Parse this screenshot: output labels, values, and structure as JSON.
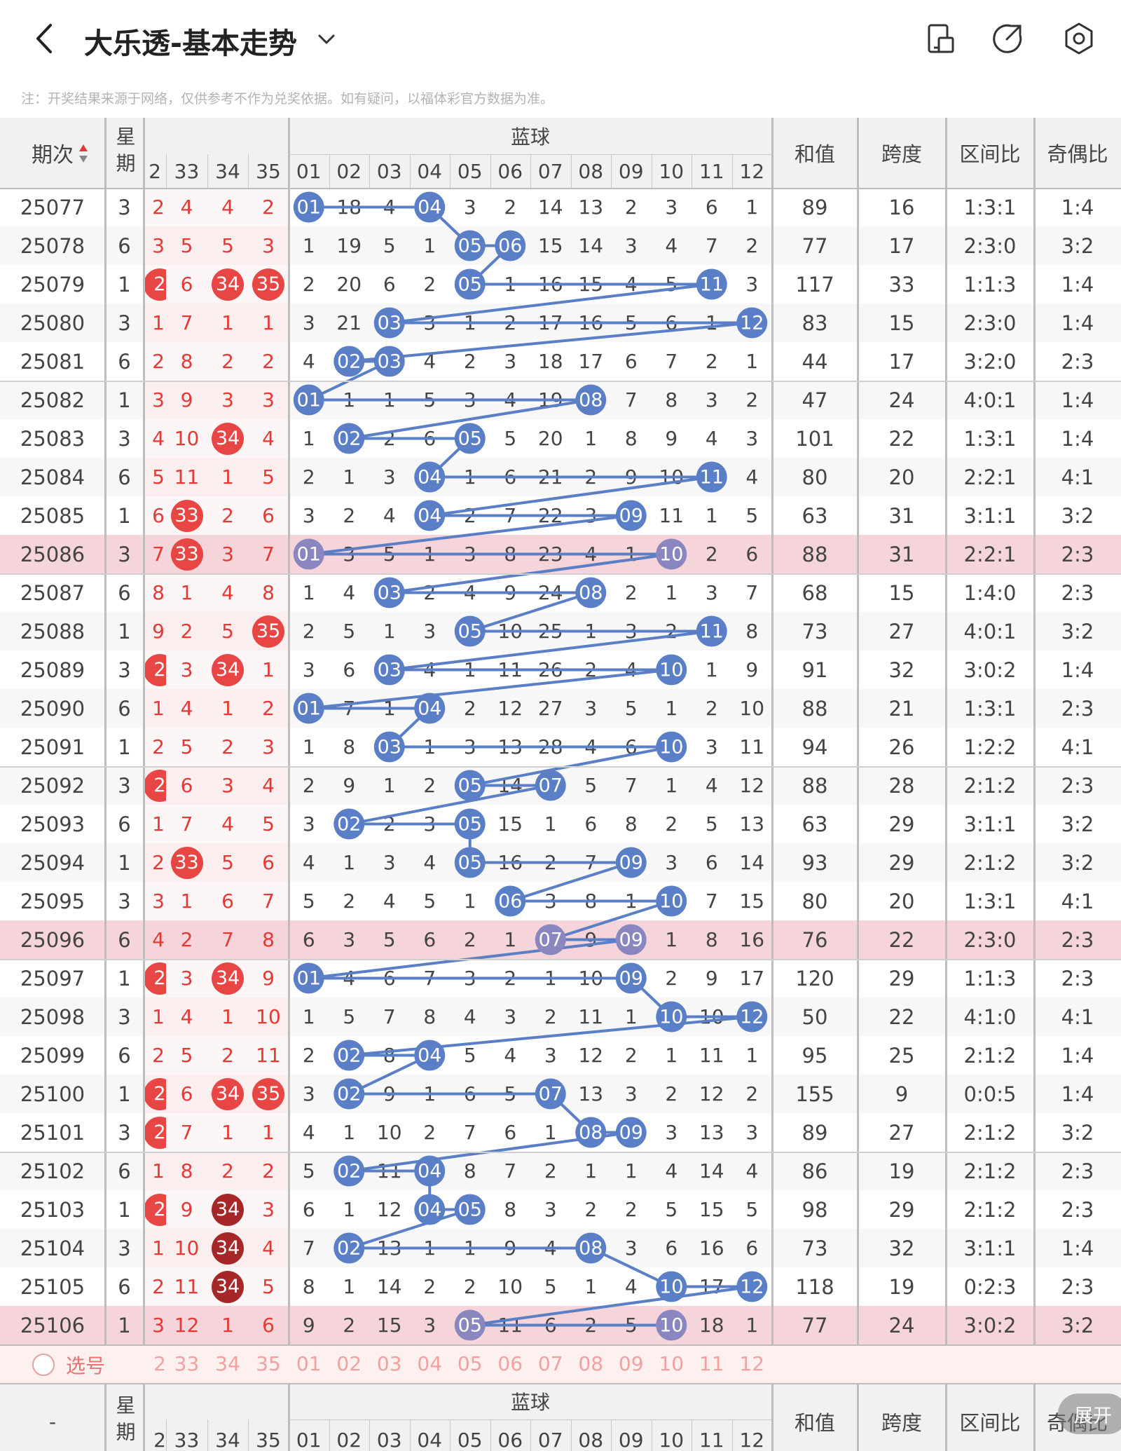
{
  "header": {
    "title": "大乐透-基本走势",
    "icons": [
      "back-arrow-icon",
      "chevron-down-icon",
      "phone-layout-icon",
      "share-icon",
      "settings-icon"
    ]
  },
  "note": "注：开奖结果来源于网络，仅供参考不作为兑奖依据。如有疑问，以福体彩官方数据为准。",
  "table": {
    "col_labels": {
      "period": "期次",
      "week": "星期",
      "blue": "蓝球",
      "sum": "和值",
      "span": "跨度",
      "zone": "区间比",
      "oddeven": "奇偶比"
    },
    "red_headers": [
      "2",
      "33",
      "34",
      "35"
    ],
    "blue_headers": [
      "01",
      "02",
      "03",
      "04",
      "05",
      "06",
      "07",
      "08",
      "09",
      "10",
      "11",
      "12"
    ],
    "rows": [
      {
        "p": "25077",
        "w": "3",
        "red": [
          "2",
          "4",
          "4",
          "2"
        ],
        "blue": [
          "01",
          "18",
          "4",
          "04",
          "3",
          "2",
          "14",
          "13",
          "2",
          "3",
          "6",
          "1"
        ],
        "sum": "89",
        "span": "16",
        "zone": "1:3:1",
        "oe": "1:4"
      },
      {
        "p": "25078",
        "w": "6",
        "red": [
          "3",
          "5",
          "5",
          "3"
        ],
        "blue": [
          "1",
          "19",
          "5",
          "1",
          "05",
          "06",
          "15",
          "14",
          "3",
          "4",
          "7",
          "2"
        ],
        "sum": "77",
        "span": "17",
        "zone": "2:3:0",
        "oe": "3:2"
      },
      {
        "p": "25079",
        "w": "1",
        "red": [
          "2",
          "6",
          "34",
          "35"
        ],
        "blue": [
          "2",
          "20",
          "6",
          "2",
          "05",
          "1",
          "16",
          "15",
          "4",
          "5",
          "11",
          "3"
        ],
        "sum": "117",
        "span": "33",
        "zone": "1:1:3",
        "oe": "1:4"
      },
      {
        "p": "25080",
        "w": "3",
        "red": [
          "1",
          "7",
          "1",
          "1"
        ],
        "blue": [
          "3",
          "21",
          "03",
          "3",
          "1",
          "2",
          "17",
          "16",
          "5",
          "6",
          "1",
          "12"
        ],
        "sum": "83",
        "span": "15",
        "zone": "2:3:0",
        "oe": "1:4"
      },
      {
        "p": "25081",
        "w": "6",
        "red": [
          "2",
          "8",
          "2",
          "2"
        ],
        "blue": [
          "4",
          "02",
          "03",
          "4",
          "2",
          "3",
          "18",
          "17",
          "6",
          "7",
          "2",
          "1"
        ],
        "sum": "44",
        "span": "17",
        "zone": "3:2:0",
        "oe": "2:3"
      },
      {
        "p": "25082",
        "w": "1",
        "red": [
          "3",
          "9",
          "3",
          "3"
        ],
        "blue": [
          "01",
          "1",
          "1",
          "5",
          "3",
          "4",
          "19",
          "08",
          "7",
          "8",
          "3",
          "2"
        ],
        "sum": "47",
        "span": "24",
        "zone": "4:0:1",
        "oe": "1:4"
      },
      {
        "p": "25083",
        "w": "3",
        "red": [
          "4",
          "10",
          "34",
          "4"
        ],
        "blue": [
          "1",
          "02",
          "2",
          "6",
          "05",
          "5",
          "20",
          "1",
          "8",
          "9",
          "4",
          "3"
        ],
        "sum": "101",
        "span": "22",
        "zone": "1:3:1",
        "oe": "1:4"
      },
      {
        "p": "25084",
        "w": "6",
        "red": [
          "5",
          "11",
          "1",
          "5"
        ],
        "blue": [
          "2",
          "1",
          "3",
          "04",
          "1",
          "6",
          "21",
          "2",
          "9",
          "10",
          "11",
          "4"
        ],
        "sum": "80",
        "span": "20",
        "zone": "2:2:1",
        "oe": "4:1"
      },
      {
        "p": "25085",
        "w": "1",
        "red": [
          "6",
          "33",
          "2",
          "6"
        ],
        "blue": [
          "3",
          "2",
          "4",
          "04",
          "2",
          "7",
          "22",
          "3",
          "09",
          "11",
          "1",
          "5"
        ],
        "sum": "63",
        "span": "31",
        "zone": "3:1:1",
        "oe": "3:2"
      },
      {
        "p": "25086",
        "w": "3",
        "red": [
          "7",
          "33",
          "3",
          "7"
        ],
        "blue": [
          "01",
          "3",
          "5",
          "1",
          "3",
          "8",
          "23",
          "4",
          "1",
          "10",
          "2",
          "6"
        ],
        "sum": "88",
        "span": "31",
        "zone": "2:2:1",
        "oe": "2:3"
      },
      {
        "p": "25087",
        "w": "6",
        "red": [
          "8",
          "1",
          "4",
          "8"
        ],
        "blue": [
          "1",
          "4",
          "03",
          "2",
          "4",
          "9",
          "24",
          "08",
          "2",
          "1",
          "3",
          "7"
        ],
        "sum": "68",
        "span": "15",
        "zone": "1:4:0",
        "oe": "2:3"
      },
      {
        "p": "25088",
        "w": "1",
        "red": [
          "9",
          "2",
          "5",
          "35"
        ],
        "blue": [
          "2",
          "5",
          "1",
          "3",
          "05",
          "10",
          "25",
          "1",
          "3",
          "2",
          "11",
          "8"
        ],
        "sum": "73",
        "span": "27",
        "zone": "4:0:1",
        "oe": "3:2"
      },
      {
        "p": "25089",
        "w": "3",
        "red": [
          "2",
          "3",
          "34",
          "1"
        ],
        "blue": [
          "3",
          "6",
          "03",
          "4",
          "1",
          "11",
          "26",
          "2",
          "4",
          "10",
          "1",
          "9"
        ],
        "sum": "91",
        "span": "32",
        "zone": "3:0:2",
        "oe": "1:4"
      },
      {
        "p": "25090",
        "w": "6",
        "red": [
          "1",
          "4",
          "1",
          "2"
        ],
        "blue": [
          "01",
          "7",
          "1",
          "04",
          "2",
          "12",
          "27",
          "3",
          "5",
          "1",
          "2",
          "10"
        ],
        "sum": "88",
        "span": "21",
        "zone": "1:3:1",
        "oe": "2:3"
      },
      {
        "p": "25091",
        "w": "1",
        "red": [
          "2",
          "5",
          "2",
          "3"
        ],
        "blue": [
          "1",
          "8",
          "03",
          "1",
          "3",
          "13",
          "28",
          "4",
          "6",
          "10",
          "3",
          "11"
        ],
        "sum": "94",
        "span": "26",
        "zone": "1:2:2",
        "oe": "4:1"
      },
      {
        "p": "25092",
        "w": "3",
        "red": [
          "2",
          "6",
          "3",
          "4"
        ],
        "blue": [
          "2",
          "9",
          "1",
          "2",
          "05",
          "14",
          "07",
          "5",
          "7",
          "1",
          "4",
          "12"
        ],
        "sum": "88",
        "span": "28",
        "zone": "2:1:2",
        "oe": "2:3"
      },
      {
        "p": "25093",
        "w": "6",
        "red": [
          "1",
          "7",
          "4",
          "5"
        ],
        "blue": [
          "3",
          "02",
          "2",
          "3",
          "05",
          "15",
          "1",
          "6",
          "8",
          "2",
          "5",
          "13"
        ],
        "sum": "63",
        "span": "29",
        "zone": "3:1:1",
        "oe": "3:2"
      },
      {
        "p": "25094",
        "w": "1",
        "red": [
          "2",
          "33",
          "5",
          "6"
        ],
        "blue": [
          "4",
          "1",
          "3",
          "4",
          "05",
          "16",
          "2",
          "7",
          "09",
          "3",
          "6",
          "14"
        ],
        "sum": "93",
        "span": "29",
        "zone": "2:1:2",
        "oe": "3:2"
      },
      {
        "p": "25095",
        "w": "3",
        "red": [
          "3",
          "1",
          "6",
          "7"
        ],
        "blue": [
          "5",
          "2",
          "4",
          "5",
          "1",
          "06",
          "3",
          "8",
          "1",
          "10",
          "7",
          "15"
        ],
        "sum": "80",
        "span": "20",
        "zone": "1:3:1",
        "oe": "4:1"
      },
      {
        "p": "25096",
        "w": "6",
        "red": [
          "4",
          "2",
          "7",
          "8"
        ],
        "blue": [
          "6",
          "3",
          "5",
          "6",
          "2",
          "1",
          "07",
          "9",
          "09",
          "1",
          "8",
          "16"
        ],
        "sum": "76",
        "span": "22",
        "zone": "2:3:0",
        "oe": "2:3"
      },
      {
        "p": "25097",
        "w": "1",
        "red": [
          "2",
          "3",
          "34",
          "9"
        ],
        "blue": [
          "01",
          "4",
          "6",
          "7",
          "3",
          "2",
          "1",
          "10",
          "09",
          "2",
          "9",
          "17"
        ],
        "sum": "120",
        "span": "29",
        "zone": "1:1:3",
        "oe": "2:3"
      },
      {
        "p": "25098",
        "w": "3",
        "red": [
          "1",
          "4",
          "1",
          "10"
        ],
        "blue": [
          "1",
          "5",
          "7",
          "8",
          "4",
          "3",
          "2",
          "11",
          "1",
          "10",
          "10",
          "12"
        ],
        "sum": "50",
        "span": "22",
        "zone": "4:1:0",
        "oe": "4:1"
      },
      {
        "p": "25099",
        "w": "6",
        "red": [
          "2",
          "5",
          "2",
          "11"
        ],
        "blue": [
          "2",
          "02",
          "8",
          "04",
          "5",
          "4",
          "3",
          "12",
          "2",
          "1",
          "11",
          "1"
        ],
        "sum": "95",
        "span": "25",
        "zone": "2:1:2",
        "oe": "1:4"
      },
      {
        "p": "25100",
        "w": "1",
        "red": [
          "2",
          "6",
          "34",
          "35"
        ],
        "blue": [
          "3",
          "02",
          "9",
          "1",
          "6",
          "5",
          "07",
          "13",
          "3",
          "2",
          "12",
          "2"
        ],
        "sum": "155",
        "span": "9",
        "zone": "0:0:5",
        "oe": "1:4"
      },
      {
        "p": "25101",
        "w": "3",
        "red": [
          "2",
          "7",
          "1",
          "1"
        ],
        "blue": [
          "4",
          "1",
          "10",
          "2",
          "7",
          "6",
          "1",
          "08",
          "09",
          "3",
          "13",
          "3"
        ],
        "sum": "89",
        "span": "27",
        "zone": "2:1:2",
        "oe": "3:2"
      },
      {
        "p": "25102",
        "w": "6",
        "red": [
          "1",
          "8",
          "2",
          "2"
        ],
        "blue": [
          "5",
          "02",
          "11",
          "04",
          "8",
          "7",
          "2",
          "1",
          "1",
          "4",
          "14",
          "4"
        ],
        "sum": "86",
        "span": "19",
        "zone": "2:1:2",
        "oe": "2:3"
      },
      {
        "p": "25103",
        "w": "1",
        "red": [
          "2",
          "9",
          "34",
          "3"
        ],
        "blue": [
          "6",
          "1",
          "12",
          "04",
          "05",
          "8",
          "3",
          "2",
          "2",
          "5",
          "15",
          "5"
        ],
        "sum": "98",
        "span": "29",
        "zone": "2:1:2",
        "oe": "2:3"
      },
      {
        "p": "25104",
        "w": "3",
        "red": [
          "1",
          "10",
          "34",
          "4"
        ],
        "blue": [
          "7",
          "02",
          "13",
          "1",
          "1",
          "9",
          "4",
          "08",
          "3",
          "6",
          "16",
          "6"
        ],
        "sum": "73",
        "span": "32",
        "zone": "3:1:1",
        "oe": "1:4"
      },
      {
        "p": "25105",
        "w": "6",
        "red": [
          "2",
          "11",
          "34",
          "5"
        ],
        "blue": [
          "8",
          "1",
          "14",
          "2",
          "2",
          "10",
          "5",
          "1",
          "4",
          "10",
          "17",
          "12"
        ],
        "sum": "118",
        "span": "19",
        "zone": "0:2:3",
        "oe": "2:3"
      },
      {
        "p": "25106",
        "w": "1",
        "red": [
          "3",
          "12",
          "1",
          "6"
        ],
        "blue": [
          "9",
          "2",
          "15",
          "3",
          "05",
          "11",
          "6",
          "2",
          "5",
          "10",
          "18",
          "1"
        ],
        "sum": "77",
        "span": "24",
        "zone": "3:0:2",
        "oe": "3:2"
      }
    ],
    "hit_reds": [
      [],
      [],
      [
        0,
        2,
        3
      ],
      [],
      [],
      [],
      [
        2
      ],
      [],
      [
        1
      ],
      [
        1
      ],
      [],
      [
        3
      ],
      [
        0,
        2
      ],
      [],
      [],
      [
        0
      ],
      [],
      [
        1
      ],
      [],
      [],
      [
        0,
        2
      ],
      [],
      [],
      [
        0,
        2,
        3
      ],
      [
        0
      ],
      [],
      [
        0,
        2
      ],
      [
        2
      ],
      [
        2
      ],
      []
    ],
    "dark_reds": [
      [],
      [],
      [],
      [],
      [],
      [],
      [],
      [],
      [],
      [],
      [],
      [],
      [],
      [],
      [],
      [],
      [],
      [],
      [],
      [],
      [],
      [],
      [],
      [],
      [],
      [],
      [
        2
      ],
      [
        2
      ],
      [
        2
      ],
      []
    ],
    "hit_blues": [
      [
        0,
        3
      ],
      [
        4,
        5
      ],
      [
        4,
        10
      ],
      [
        2,
        11
      ],
      [
        1,
        2
      ],
      [
        0,
        7
      ],
      [
        1,
        4
      ],
      [
        3,
        10
      ],
      [
        3,
        8
      ],
      [
        0,
        9
      ],
      [
        2,
        7
      ],
      [
        4,
        10
      ],
      [
        2,
        9
      ],
      [
        0,
        3
      ],
      [
        2,
        9
      ],
      [
        4,
        6
      ],
      [
        1,
        4
      ],
      [
        4,
        8
      ],
      [
        5,
        9
      ],
      [
        6,
        8
      ],
      [
        0,
        8
      ],
      [
        9,
        11
      ],
      [
        1,
        3
      ],
      [
        1,
        6
      ],
      [
        7,
        8
      ],
      [
        1,
        3
      ],
      [
        3,
        4
      ],
      [
        1,
        7
      ],
      [
        9,
        11
      ],
      [
        4,
        9
      ]
    ],
    "highlight_rows": [
      9,
      19,
      29
    ],
    "select_label": "选号",
    "footer_period": "-"
  },
  "toggle_label": "展开",
  "colors": {
    "blue_ball": "#5b7fc6",
    "blue_line": "#5b7fc6",
    "red_ball": "#e84545",
    "dark_red_ball": "#a52727",
    "highlight_row": "#f5d5da",
    "header_bg": "#f1f1f1"
  }
}
